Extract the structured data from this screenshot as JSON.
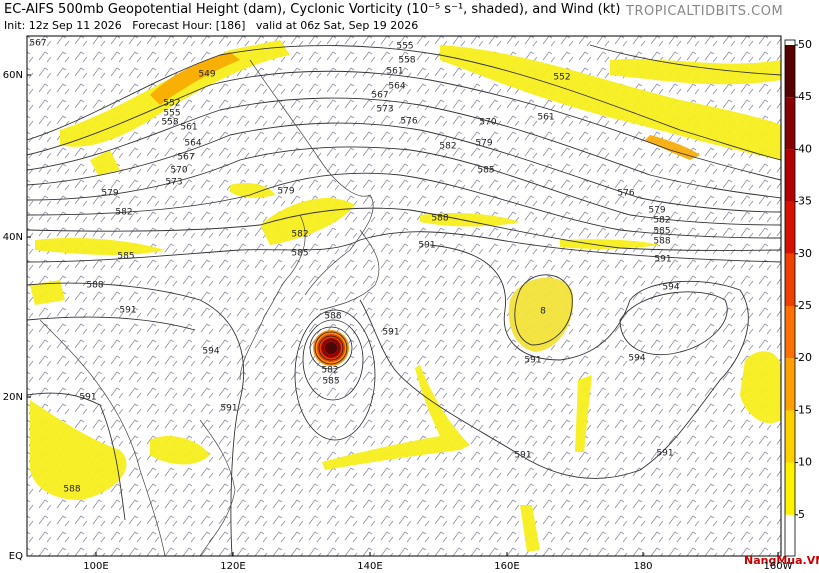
{
  "header": {
    "title": "EC-AIFS 500mb Geopotential Height (dam), Cyclonic Vorticity (10⁻⁵ s⁻¹, shaded), and Wind (kt)",
    "subtitle": "Init: 12z Sep 11 2026   Forecast Hour: [186]   valid at 06z Sat, Sep 19 2026",
    "site": "TROPICALTIDBITS.COM"
  },
  "map": {
    "lat_labels": [
      "60N",
      "40N",
      "20N",
      "EQ"
    ],
    "lon_labels": [
      "100E",
      "120E",
      "140E",
      "160E",
      "180",
      "160W"
    ],
    "contour_labels": [
      "567",
      "549",
      "552",
      "555",
      "558",
      "561",
      "564",
      "567",
      "570",
      "573",
      "579",
      "582",
      "585",
      "588",
      "591",
      "594",
      "591",
      "591",
      "588",
      "579",
      "582",
      "585",
      "588",
      "591",
      "582",
      "585",
      "555",
      "558",
      "561",
      "564",
      "567",
      "573",
      "576",
      "570",
      "579",
      "582",
      "585",
      "588",
      "591",
      "552",
      "561",
      "576",
      "579",
      "582",
      "585",
      "588",
      "591",
      "594",
      "8",
      "591",
      "594",
      "591",
      "591"
    ]
  },
  "colorbar": {
    "ticks": [
      5,
      10,
      15,
      20,
      25,
      30,
      35,
      40,
      45,
      50
    ],
    "colors": [
      "#fff200",
      "#ffd000",
      "#ffa000",
      "#ff7000",
      "#f04000",
      "#d81000",
      "#b00000",
      "#860000",
      "#560000"
    ]
  },
  "watermark": "NangMua.VN"
}
